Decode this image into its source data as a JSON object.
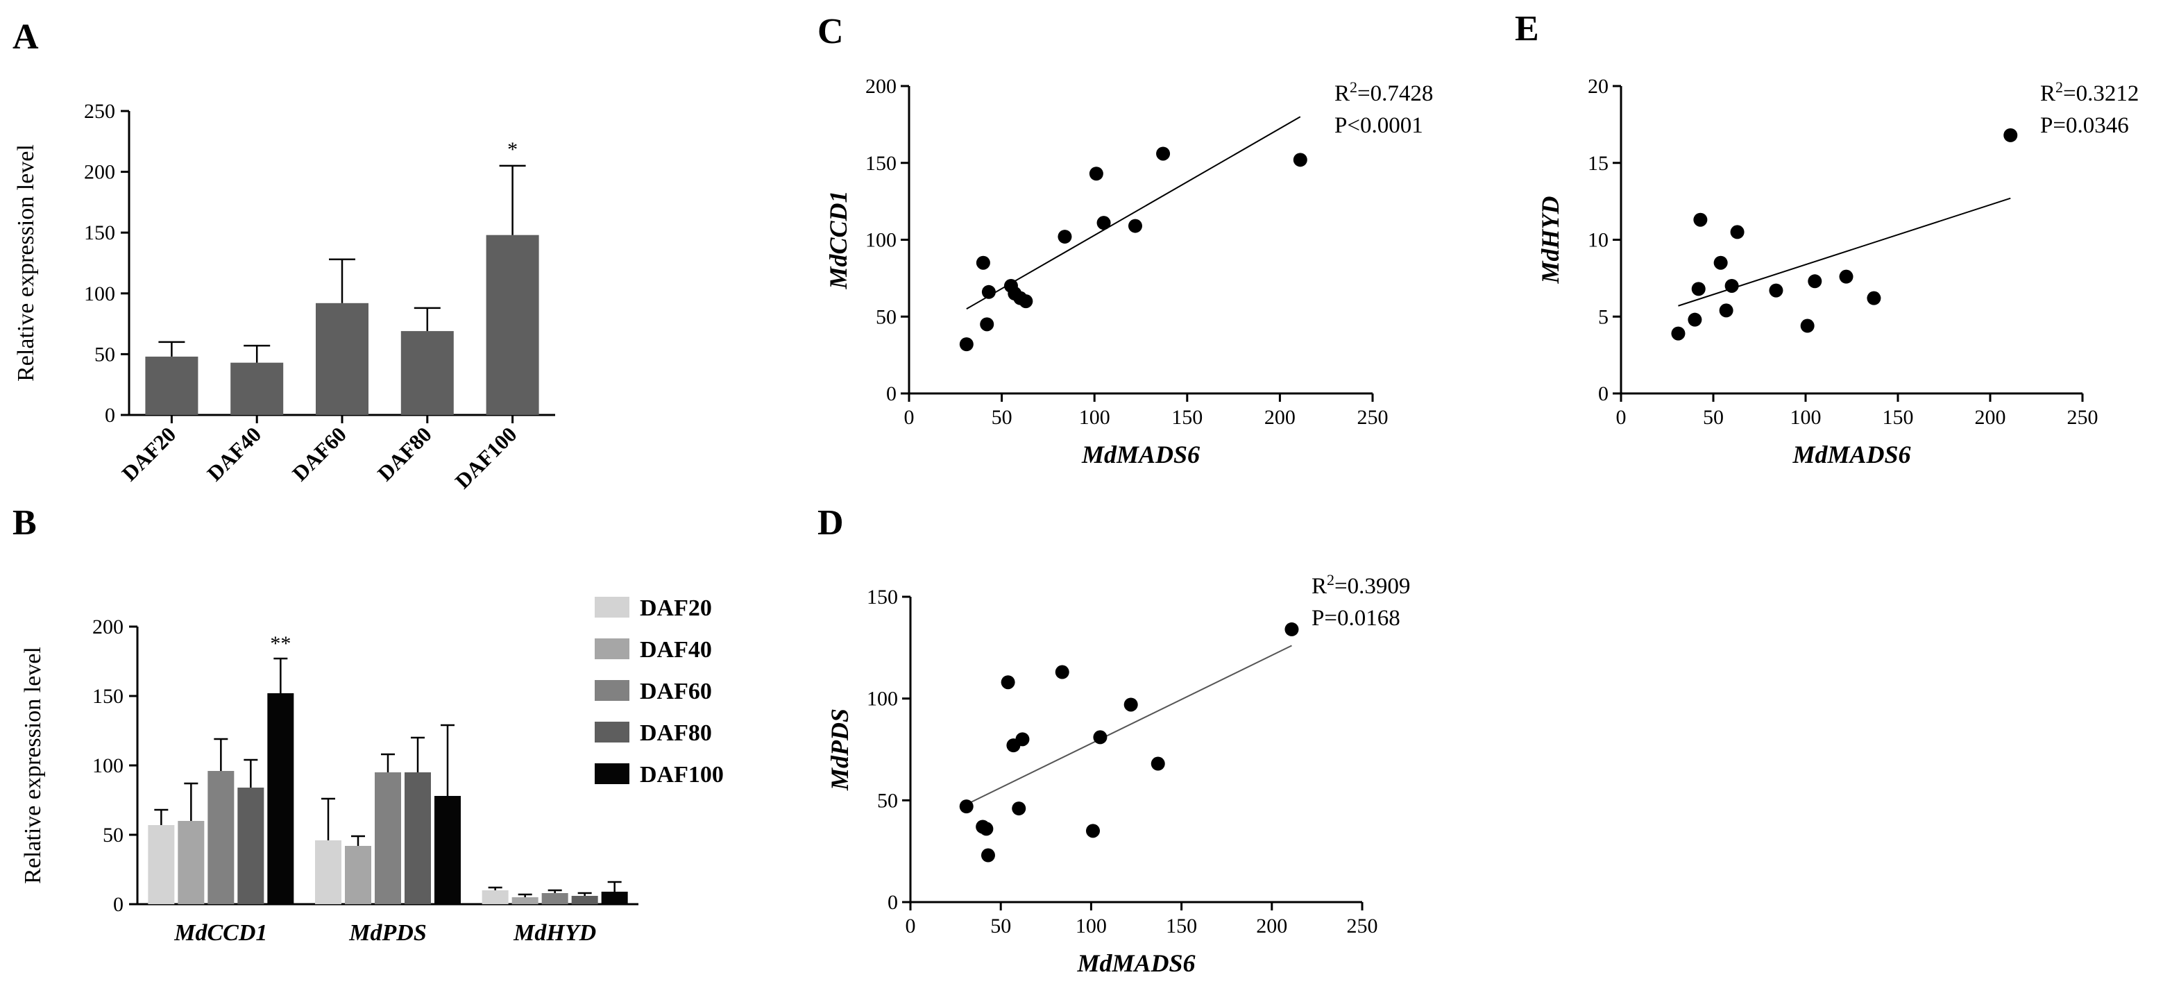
{
  "colors": {
    "panelA_bar": "#5f5f5f",
    "daf20": "#d3d3d3",
    "daf40": "#a6a6a6",
    "daf60": "#818181",
    "daf80": "#5e5e5e",
    "daf100": "#050505",
    "dot": "#000000"
  },
  "chart_data": [
    {
      "panel": "A",
      "type": "bar",
      "ylabel": "Relative expression level",
      "xlabel": "",
      "ylim": [
        0,
        250
      ],
      "yticks": [
        0,
        50,
        100,
        150,
        200,
        250
      ],
      "categories": [
        "DAF20",
        "DAF40",
        "DAF60",
        "DAF80",
        "DAF100"
      ],
      "values": [
        48,
        43,
        92,
        69,
        148
      ],
      "errors": [
        12,
        14,
        36,
        19,
        57
      ],
      "annotations": [
        "",
        "",
        "",
        "",
        "*"
      ]
    },
    {
      "panel": "B",
      "type": "bar",
      "ylabel": "Relative expression level",
      "xlabel": "",
      "ylim": [
        0,
        200
      ],
      "yticks": [
        0,
        50,
        100,
        150,
        200
      ],
      "categories": [
        "MdCCD1",
        "MdPDS",
        "MdHYD"
      ],
      "series": [
        {
          "name": "DAF20",
          "values": [
            57,
            46,
            10
          ],
          "errors": [
            11,
            30,
            2
          ]
        },
        {
          "name": "DAF40",
          "values": [
            60,
            42,
            5
          ],
          "errors": [
            27,
            7,
            2
          ]
        },
        {
          "name": "DAF60",
          "values": [
            96,
            95,
            8
          ],
          "errors": [
            23,
            13,
            2
          ]
        },
        {
          "name": "DAF80",
          "values": [
            84,
            95,
            6
          ],
          "errors": [
            20,
            25,
            2
          ]
        },
        {
          "name": "DAF100",
          "values": [
            152,
            78,
            9
          ],
          "errors": [
            25,
            51,
            7
          ]
        }
      ],
      "annotations": [
        "**",
        "",
        ""
      ]
    },
    {
      "panel": "C",
      "type": "scatter",
      "xlabel": "MdMADS6",
      "ylabel": "MdCCD1",
      "xlim": [
        0,
        250
      ],
      "ylim": [
        0,
        200
      ],
      "xticks": [
        0,
        50,
        100,
        150,
        200,
        250
      ],
      "yticks": [
        0,
        50,
        100,
        150,
        200
      ],
      "x": [
        31,
        40,
        42,
        43,
        55,
        57,
        60,
        63,
        84,
        101,
        105,
        122,
        137,
        211
      ],
      "y": [
        32,
        85,
        45,
        66,
        70,
        65,
        62,
        60,
        102,
        143,
        111,
        109,
        156,
        152
      ],
      "fit": {
        "x": [
          31,
          211
        ],
        "y": [
          55,
          180
        ]
      },
      "stat_lines": [
        "=0.7428",
        "P<0.0001"
      ],
      "r2_base": "R",
      "r2_sup": "2"
    },
    {
      "panel": "D",
      "type": "scatter",
      "xlabel": "MdMADS6",
      "ylabel": "MdPDS",
      "xlim": [
        0,
        250
      ],
      "ylim": [
        0,
        150
      ],
      "xticks": [
        0,
        50,
        100,
        150,
        200,
        250
      ],
      "yticks": [
        0,
        50,
        100,
        150
      ],
      "x": [
        31,
        40,
        42,
        43,
        54,
        57,
        60,
        62,
        84,
        101,
        105,
        122,
        137,
        211
      ],
      "y": [
        47,
        37,
        36,
        23,
        108,
        77,
        46,
        80,
        113,
        35,
        81,
        97,
        68,
        134
      ],
      "fit": {
        "x": [
          31,
          211
        ],
        "y": [
          48,
          126
        ]
      },
      "stat_lines": [
        "=0.3909",
        "P=0.0168"
      ],
      "r2_base": "R",
      "r2_sup": "2"
    },
    {
      "panel": "E",
      "type": "scatter",
      "xlabel": "MdMADS6",
      "ylabel": "MdHYD",
      "xlim": [
        0,
        250
      ],
      "ylim": [
        0,
        20
      ],
      "xticks": [
        0,
        50,
        100,
        150,
        200,
        250
      ],
      "yticks": [
        0,
        5,
        10,
        15,
        20
      ],
      "x": [
        31,
        40,
        42,
        43,
        54,
        57,
        60,
        63,
        84,
        101,
        105,
        122,
        137,
        211
      ],
      "y": [
        3.9,
        4.8,
        6.8,
        11.3,
        8.5,
        5.4,
        7.0,
        10.5,
        6.7,
        4.4,
        7.3,
        7.6,
        6.2,
        16.8
      ],
      "fit": {
        "x": [
          31,
          211
        ],
        "y": [
          5.7,
          12.7
        ]
      },
      "stat_lines": [
        "=0.3212",
        "P=0.0346"
      ],
      "r2_base": "R",
      "r2_sup": "2"
    }
  ],
  "panel_labels": [
    "A",
    "B",
    "C",
    "D",
    "E"
  ]
}
